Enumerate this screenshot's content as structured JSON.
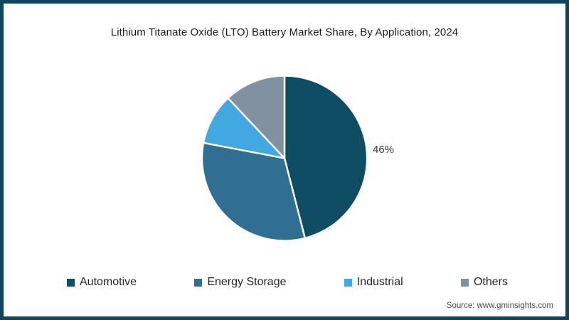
{
  "frame": {
    "border_color": "#0d455c",
    "background": "#ffffff"
  },
  "source": {
    "text": "Source: www.gminsights.com"
  },
  "chart_data": {
    "type": "pie",
    "title": "Lithium Titanate Oxide (LTO) Battery Market Share, By Application, 2024",
    "categories": [
      "Automotive",
      "Energy Storage",
      "Industrial",
      "Others"
    ],
    "values": [
      46,
      32,
      10,
      12
    ],
    "unit": "%",
    "colors": [
      "#0e4d64",
      "#316f92",
      "#41a8e0",
      "#8291a2"
    ],
    "slice_border_color": "#ffffff",
    "start_angle_deg": 0,
    "direction": "clockwise",
    "legend_position": "bottom",
    "data_label": {
      "category": "Automotive",
      "text": "46%"
    }
  }
}
